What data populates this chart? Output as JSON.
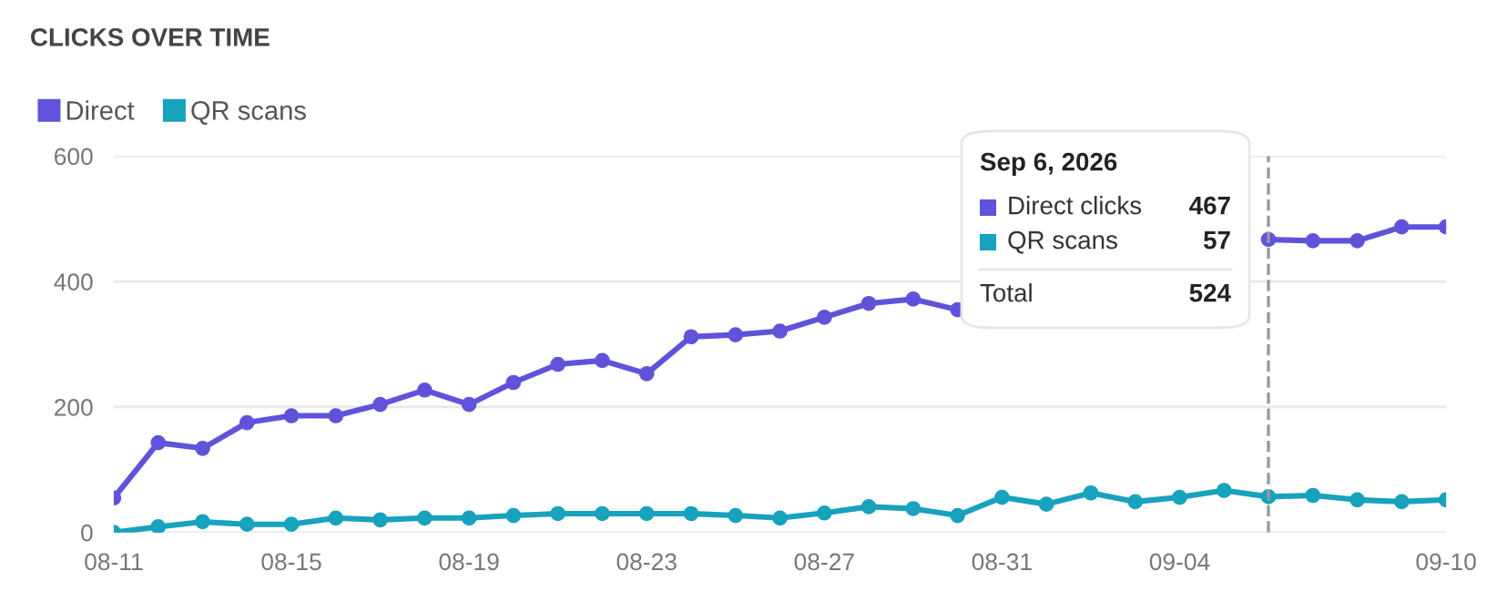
{
  "chart_data": {
    "type": "line",
    "title": "CLICKS OVER TIME",
    "x": [
      "2026-08-11",
      "2026-08-12",
      "2026-08-13",
      "2026-08-14",
      "2026-08-15",
      "2026-08-16",
      "2026-08-17",
      "2026-08-18",
      "2026-08-19",
      "2026-08-20",
      "2026-08-21",
      "2026-08-22",
      "2026-08-23",
      "2026-08-24",
      "2026-08-25",
      "2026-08-26",
      "2026-08-27",
      "2026-08-28",
      "2026-08-29",
      "2026-08-30",
      "2026-08-31",
      "2026-09-01",
      "2026-09-02",
      "2026-09-03",
      "2026-09-04",
      "2026-09-05",
      "2026-09-06",
      "2026-09-07",
      "2026-09-08",
      "2026-09-09",
      "2026-09-10"
    ],
    "series": [
      {
        "name": "Direct",
        "color": "#6152db",
        "values": [
          55,
          143,
          134,
          175,
          186,
          186,
          204,
          227,
          204,
          239,
          268,
          274,
          253,
          312,
          315,
          321,
          343,
          365,
          372,
          355,
          null,
          null,
          null,
          null,
          null,
          null,
          467,
          465,
          465,
          487,
          487
        ]
      },
      {
        "name": "QR scans",
        "color": "#17a2bd",
        "values": [
          0,
          9,
          17,
          13,
          13,
          23,
          20,
          23,
          23,
          27,
          30,
          30,
          30,
          30,
          27,
          23,
          31,
          41,
          38,
          27,
          56,
          45,
          63,
          49,
          56,
          67,
          57,
          59,
          52,
          49,
          52
        ]
      }
    ],
    "xlim": [
      "2026-08-11",
      "2026-09-10"
    ],
    "xticks": [
      {
        "value": "2026-08-11",
        "label": "08-11"
      },
      {
        "value": "2026-08-15",
        "label": "08-15"
      },
      {
        "value": "2026-08-19",
        "label": "08-19"
      },
      {
        "value": "2026-08-23",
        "label": "08-23"
      },
      {
        "value": "2026-08-27",
        "label": "08-27"
      },
      {
        "value": "2026-08-31",
        "label": "08-31"
      },
      {
        "value": "2026-09-04",
        "label": "09-04"
      },
      {
        "value": "2026-09-10",
        "label": "09-10"
      }
    ],
    "ylim": [
      0,
      600
    ],
    "yticks": [
      0,
      200,
      400,
      600
    ],
    "grid": "y",
    "legend": "top left",
    "marker": "circle",
    "line_style": "solid",
    "ref_lines": [
      {
        "axis": "x",
        "value": "2026-09-06",
        "color": "#999999",
        "line_style": "dashed"
      }
    ],
    "annotations": [
      "Sep 6, 2026",
      "Direct clicks",
      "467",
      "QR scans",
      "57",
      "Total",
      "524"
    ]
  }
}
